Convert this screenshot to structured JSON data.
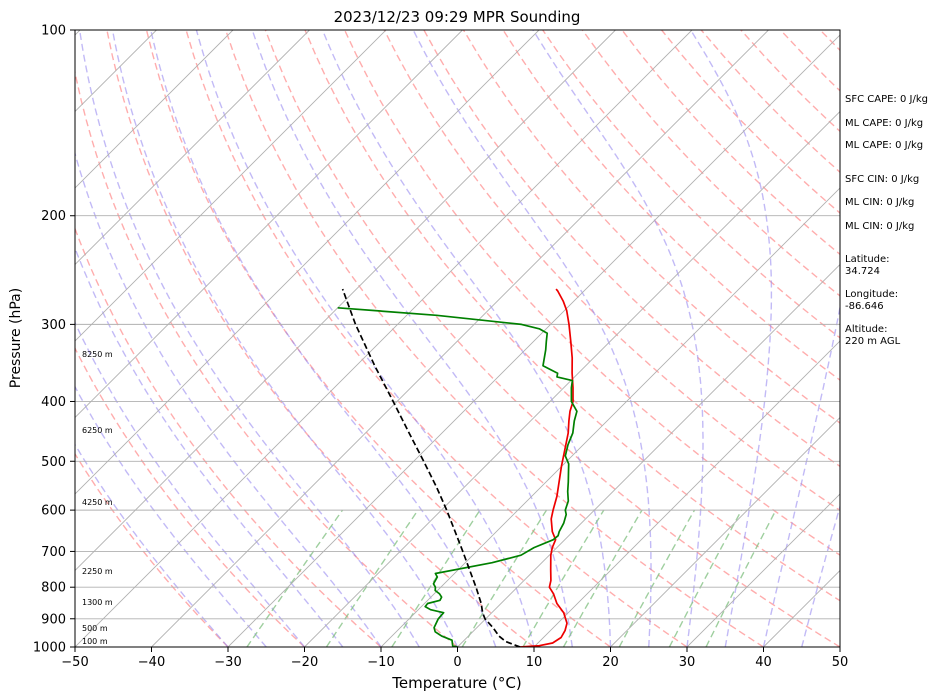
{
  "chart_data": {
    "type": "skew-t",
    "title": "2023/12/23 09:29 MPR Sounding",
    "xlabel": "Temperature (°C)",
    "ylabel": "Pressure (hPa)",
    "xlim": [
      -50,
      50
    ],
    "ylim": [
      1000,
      100
    ],
    "y_scale": "log",
    "x_ticks": [
      "−50",
      "−40",
      "−30",
      "−20",
      "−10",
      "0",
      "10",
      "20",
      "30",
      "40",
      "50"
    ],
    "y_ticks": [
      "1000",
      "900",
      "800",
      "700",
      "600",
      "500",
      "400",
      "300",
      "200",
      "100"
    ],
    "grid": true,
    "height_labels": [
      "8250 m",
      "6250 m",
      "4250 m",
      "2250 m",
      "1300 m",
      "500 m",
      "100 m"
    ],
    "series": [
      {
        "color": "#ee0000",
        "points": [
          [
            1000,
            8.2
          ],
          [
            995,
            10.5
          ],
          [
            985,
            11.9
          ],
          [
            965,
            12.3
          ],
          [
            940,
            11.9
          ],
          [
            915,
            11.2
          ],
          [
            880,
            9.4
          ],
          [
            850,
            7.3
          ],
          [
            820,
            5.6
          ],
          [
            800,
            4.2
          ],
          [
            780,
            3.5
          ],
          [
            750,
            2.1
          ],
          [
            710,
            0.2
          ],
          [
            690,
            -0.6
          ],
          [
            670,
            -1.2
          ],
          [
            650,
            -2.7
          ],
          [
            620,
            -4.5
          ],
          [
            600,
            -5.4
          ],
          [
            570,
            -6.7
          ],
          [
            540,
            -8.3
          ],
          [
            510,
            -10.0
          ],
          [
            480,
            -11.7
          ],
          [
            450,
            -13.5
          ],
          [
            430,
            -15.0
          ],
          [
            415,
            -16.1
          ],
          [
            400,
            -17.0
          ],
          [
            380,
            -18.8
          ],
          [
            360,
            -20.8
          ],
          [
            340,
            -22.8
          ],
          [
            320,
            -25.1
          ],
          [
            300,
            -27.6
          ],
          [
            285,
            -29.7
          ],
          [
            275,
            -31.4
          ],
          [
            265,
            -33.4
          ],
          [
            263,
            -33.9
          ]
        ]
      },
      {
        "color": "#008000",
        "points": [
          [
            1000,
            0.0
          ],
          [
            995,
            -0.8
          ],
          [
            990,
            -1.0
          ],
          [
            975,
            -1.6
          ],
          [
            960,
            -3.5
          ],
          [
            945,
            -4.9
          ],
          [
            930,
            -5.6
          ],
          [
            900,
            -6.2
          ],
          [
            880,
            -6.3
          ],
          [
            870,
            -8.4
          ],
          [
            860,
            -9.5
          ],
          [
            850,
            -9.6
          ],
          [
            840,
            -8.4
          ],
          [
            830,
            -8.6
          ],
          [
            820,
            -9.3
          ],
          [
            810,
            -10.3
          ],
          [
            800,
            -10.7
          ],
          [
            790,
            -11.4
          ],
          [
            770,
            -11.8
          ],
          [
            760,
            -12.5
          ],
          [
            730,
            -6.5
          ],
          [
            710,
            -3.7
          ],
          [
            690,
            -3.0
          ],
          [
            670,
            -1.5
          ],
          [
            660,
            -1.4
          ],
          [
            650,
            -1.8
          ],
          [
            630,
            -2.3
          ],
          [
            610,
            -3.1
          ],
          [
            600,
            -3.8
          ],
          [
            580,
            -4.6
          ],
          [
            560,
            -5.9
          ],
          [
            540,
            -7.1
          ],
          [
            520,
            -8.4
          ],
          [
            505,
            -9.4
          ],
          [
            490,
            -10.9
          ],
          [
            470,
            -12.0
          ],
          [
            450,
            -12.9
          ],
          [
            430,
            -14.3
          ],
          [
            415,
            -15.2
          ],
          [
            400,
            -17.2
          ],
          [
            380,
            -19.0
          ],
          [
            370,
            -19.8
          ],
          [
            365,
            -22.3
          ],
          [
            360,
            -22.7
          ],
          [
            350,
            -25.6
          ],
          [
            330,
            -27.3
          ],
          [
            320,
            -28.3
          ],
          [
            310,
            -29.3
          ],
          [
            305,
            -30.9
          ],
          [
            300,
            -33.8
          ],
          [
            290,
            -46.1
          ],
          [
            282,
            -60.0
          ]
        ]
      },
      {
        "color": "#000000",
        "dash": "dashed",
        "points": [
          [
            1000,
            8.2
          ],
          [
            980,
            5.6
          ],
          [
            960,
            4.0
          ],
          [
            930,
            2.1
          ],
          [
            900,
            -0.1
          ],
          [
            880,
            -1.2
          ],
          [
            850,
            -2.6
          ],
          [
            800,
            -5.4
          ],
          [
            750,
            -8.5
          ],
          [
            700,
            -11.8
          ],
          [
            650,
            -15.4
          ],
          [
            600,
            -19.3
          ],
          [
            550,
            -23.7
          ],
          [
            500,
            -28.7
          ],
          [
            450,
            -34.3
          ],
          [
            400,
            -40.5
          ],
          [
            350,
            -47.6
          ],
          [
            300,
            -55.5
          ],
          [
            263,
            -61.8
          ]
        ]
      }
    ]
  },
  "annotations": {
    "sfc_cape": "SFC CAPE: 0 J/kg",
    "ml_cape_1": "ML CAPE: 0 J/kg",
    "ml_cape_2": "ML CAPE: 0 J/kg",
    "sfc_cin": "SFC CIN: 0 J/kg",
    "ml_cin_1": "ML CIN: 0 J/kg",
    "ml_cin_2": "ML CIN: 0 J/kg",
    "latitude_label": "Latitude:",
    "latitude_value": "34.724",
    "longitude_label": "Longitude:",
    "longitude_value": "-86.646",
    "altitude_label": "Altitude:",
    "altitude_value": "220 m AGL"
  },
  "colors": {
    "isotherm": "#b0b0b0",
    "dry_adiabat": "#ff9999",
    "moist_adiabat": "#9a8cf0",
    "mixing_ratio": "#7fbf7f"
  }
}
